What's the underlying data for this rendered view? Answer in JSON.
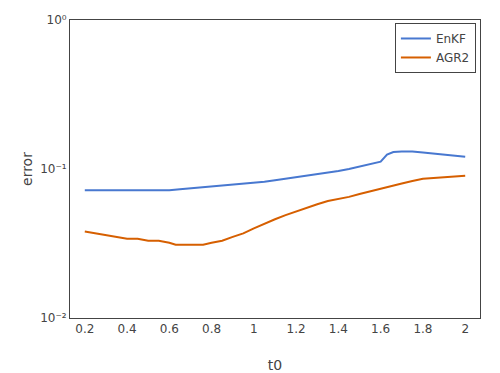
{
  "chart_data": {
    "type": "line",
    "x_label": "t0",
    "y_label": "error",
    "series": [
      {
        "name": "EnKF",
        "color": "#4878d0",
        "x": [
          0.2,
          0.25,
          0.3,
          0.35,
          0.4,
          0.45,
          0.5,
          0.55,
          0.6,
          0.65,
          0.7,
          0.75,
          0.8,
          0.85,
          0.9,
          0.95,
          1.0,
          1.05,
          1.1,
          1.15,
          1.2,
          1.25,
          1.3,
          1.35,
          1.4,
          1.45,
          1.5,
          1.55,
          1.6,
          1.63,
          1.66,
          1.7,
          1.75,
          1.8,
          1.85,
          1.9,
          1.95,
          2.0
        ],
        "values": [
          0.072,
          0.072,
          0.072,
          0.072,
          0.072,
          0.072,
          0.072,
          0.072,
          0.072,
          0.073,
          0.074,
          0.075,
          0.076,
          0.077,
          0.078,
          0.079,
          0.081,
          0.082,
          0.084,
          0.086,
          0.088,
          0.09,
          0.092,
          0.095,
          0.097,
          0.1,
          0.104,
          0.107,
          0.112,
          0.125,
          0.13,
          0.131,
          0.131,
          0.129,
          0.127,
          0.125,
          0.123,
          0.121
        ]
      },
      {
        "name": "AGR2",
        "color": "#d65f00",
        "x": [
          0.2,
          0.25,
          0.3,
          0.35,
          0.4,
          0.45,
          0.5,
          0.55,
          0.6,
          0.63,
          0.66,
          0.7,
          0.73,
          0.76,
          0.8,
          0.85,
          0.9,
          0.95,
          1.0,
          1.05,
          1.1,
          1.15,
          1.2,
          1.25,
          1.3,
          1.35,
          1.4,
          1.45,
          1.5,
          1.55,
          1.6,
          1.65,
          1.7,
          1.75,
          1.8,
          1.85,
          1.9,
          1.95,
          2.0
        ],
        "values": [
          0.038,
          0.037,
          0.036,
          0.035,
          0.034,
          0.034,
          0.033,
          0.033,
          0.032,
          0.031,
          0.031,
          0.031,
          0.031,
          0.031,
          0.032,
          0.033,
          0.035,
          0.037,
          0.04,
          0.043,
          0.046,
          0.049,
          0.052,
          0.055,
          0.058,
          0.061,
          0.063,
          0.065,
          0.068,
          0.071,
          0.074,
          0.077,
          0.08,
          0.083,
          0.086,
          0.087,
          0.088,
          0.089,
          0.09
        ]
      }
    ],
    "xlim": [
      0.13,
      2.07
    ],
    "ylim": [
      0.01,
      1.0
    ],
    "xticks": [
      0.2,
      0.4,
      0.6,
      0.8,
      1,
      1.2,
      1.4,
      1.6,
      1.8,
      2
    ],
    "yticks": [
      {
        "value": 0.01,
        "label": "10⁻²"
      },
      {
        "value": 0.1,
        "label": "10⁻¹"
      },
      {
        "value": 1,
        "label": "10⁰"
      }
    ],
    "log": "y",
    "grid": false,
    "legend": "upper right"
  }
}
